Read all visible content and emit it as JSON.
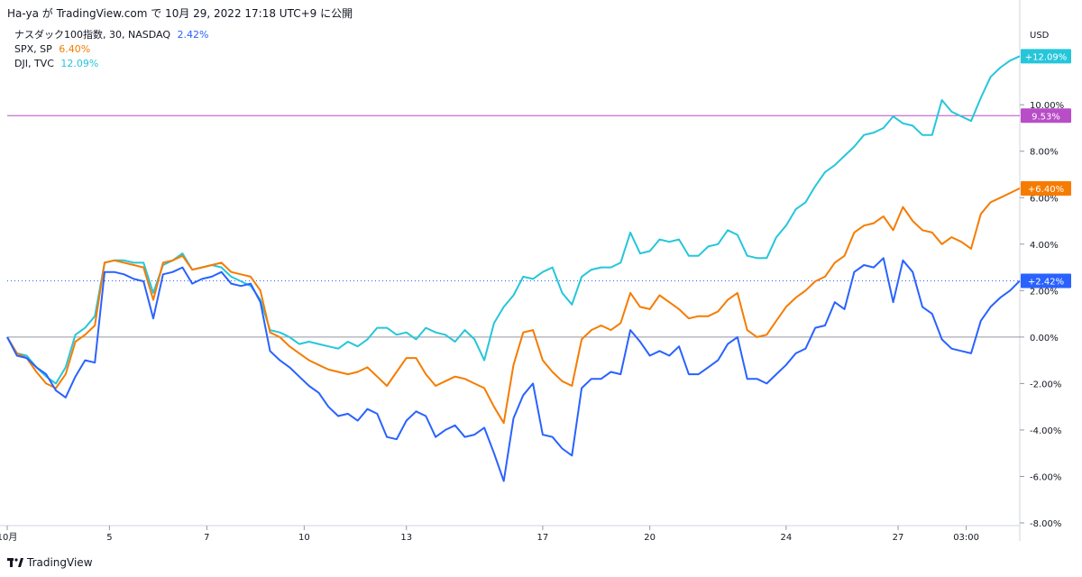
{
  "header": {
    "text": "Ha-ya が TradingView.com で 10月 29, 2022 17:18 UTC+9 に公開"
  },
  "legend": [
    {
      "name": "ナスダック100指数, 30, NASDAQ",
      "value": "2.42%",
      "color": "#2962ff"
    },
    {
      "name": "SPX, SP",
      "value": "6.40%",
      "color": "#f57c00"
    },
    {
      "name": "DJI, TVC",
      "value": "12.09%",
      "color": "#26c6da"
    }
  ],
  "footer": {
    "brand": "TradingView"
  },
  "colors": {
    "ref_line": "#b84dc7",
    "zero_line": "#9598a1",
    "blue_dotted": "#2962ff"
  },
  "chart_data": {
    "type": "line",
    "y_unit": "USD",
    "ylim": [
      -8,
      13.5
    ],
    "y_ticks": [
      {
        "value": 10,
        "label": "10.00%"
      },
      {
        "value": 8,
        "label": "8.00%"
      },
      {
        "value": 6,
        "label": "6.00%"
      },
      {
        "value": 4,
        "label": "4.00%"
      },
      {
        "value": 2,
        "label": "2.00%"
      },
      {
        "value": 0,
        "label": "0.00%"
      },
      {
        "value": -2,
        "label": "-2.00%"
      },
      {
        "value": -4,
        "label": "-4.00%"
      },
      {
        "value": -6,
        "label": "-6.00%"
      },
      {
        "value": -8,
        "label": "-8.00%"
      }
    ],
    "x_ticks": [
      {
        "label": "10月",
        "index": 0
      },
      {
        "label": "5",
        "index": 10.5
      },
      {
        "label": "7",
        "index": 20.5
      },
      {
        "label": "10",
        "index": 30.5
      },
      {
        "label": "13",
        "index": 41
      },
      {
        "label": "17",
        "index": 55
      },
      {
        "label": "20",
        "index": 66
      },
      {
        "label": "24",
        "index": 80
      },
      {
        "label": "27",
        "index": 91.5
      },
      {
        "label": "03:00",
        "index": 98.5
      }
    ],
    "reference_line": {
      "value": 9.53,
      "label": "9.53%"
    },
    "series": [
      {
        "name": "ナスダック100指数",
        "color": "#2962ff",
        "last_label": "+2.42%",
        "values": [
          0,
          -0.8,
          -0.9,
          -1.3,
          -1.6,
          -2.3,
          -2.6,
          -1.7,
          -1.0,
          -1.1,
          2.8,
          2.8,
          2.7,
          2.5,
          2.4,
          0.8,
          2.7,
          2.8,
          3.0,
          2.3,
          2.5,
          2.6,
          2.8,
          2.3,
          2.2,
          2.3,
          1.5,
          -0.6,
          -1.0,
          -1.3,
          -1.7,
          -2.1,
          -2.4,
          -3.0,
          -3.4,
          -3.3,
          -3.6,
          -3.1,
          -3.3,
          -4.3,
          -4.4,
          -3.6,
          -3.2,
          -3.4,
          -4.3,
          -4.0,
          -3.8,
          -4.3,
          -4.2,
          -3.9,
          -5.0,
          -6.2,
          -3.5,
          -2.5,
          -2.0,
          -4.2,
          -4.3,
          -4.8,
          -5.1,
          -2.2,
          -1.8,
          -1.8,
          -1.5,
          -1.6,
          0.3,
          -0.2,
          -0.8,
          -0.6,
          -0.8,
          -0.4,
          -1.6,
          -1.6,
          -1.3,
          -1.0,
          -0.3,
          0.0,
          -1.8,
          -1.8,
          -2.0,
          -1.6,
          -1.2,
          -0.7,
          -0.5,
          0.4,
          0.5,
          1.5,
          1.2,
          2.8,
          3.1,
          3.0,
          3.4,
          1.5,
          3.3,
          2.8,
          1.3,
          1.0,
          -0.1,
          -0.5,
          -0.6,
          -0.7,
          0.7,
          1.3,
          1.7,
          2.0,
          2.42
        ]
      },
      {
        "name": "SPX",
        "color": "#f57c00",
        "last_label": "+6.40%",
        "values": [
          0,
          -0.7,
          -0.9,
          -1.5,
          -2.0,
          -2.2,
          -1.6,
          -0.2,
          0.1,
          0.5,
          3.2,
          3.3,
          3.2,
          3.1,
          3.0,
          1.6,
          3.2,
          3.3,
          3.5,
          2.9,
          3.0,
          3.1,
          3.2,
          2.8,
          2.7,
          2.6,
          2.0,
          0.2,
          0.0,
          -0.4,
          -0.7,
          -1.0,
          -1.2,
          -1.4,
          -1.5,
          -1.6,
          -1.5,
          -1.3,
          -1.7,
          -2.1,
          -1.5,
          -0.9,
          -0.9,
          -1.6,
          -2.1,
          -1.9,
          -1.7,
          -1.8,
          -2.0,
          -2.2,
          -3.0,
          -3.7,
          -1.2,
          0.2,
          0.3,
          -1.0,
          -1.5,
          -1.9,
          -2.1,
          -0.1,
          0.3,
          0.5,
          0.3,
          0.6,
          1.9,
          1.3,
          1.2,
          1.8,
          1.5,
          1.2,
          0.8,
          0.9,
          0.9,
          1.1,
          1.6,
          1.9,
          0.3,
          0.0,
          0.1,
          0.7,
          1.3,
          1.7,
          2.0,
          2.4,
          2.6,
          3.2,
          3.5,
          4.5,
          4.8,
          4.9,
          5.2,
          4.6,
          5.6,
          5.0,
          4.6,
          4.5,
          4.0,
          4.3,
          4.1,
          3.8,
          5.3,
          5.8,
          6.0,
          6.2,
          6.4
        ]
      },
      {
        "name": "DJI",
        "color": "#26c6da",
        "last_label": "+12.09%",
        "values": [
          0,
          -0.7,
          -0.8,
          -1.3,
          -1.7,
          -2.0,
          -1.3,
          0.1,
          0.4,
          0.9,
          3.2,
          3.3,
          3.3,
          3.2,
          3.2,
          1.9,
          3.1,
          3.3,
          3.6,
          2.9,
          3.0,
          3.1,
          3.0,
          2.6,
          2.4,
          2.2,
          1.6,
          0.3,
          0.2,
          0.0,
          -0.3,
          -0.2,
          -0.3,
          -0.4,
          -0.5,
          -0.2,
          -0.4,
          -0.1,
          0.4,
          0.4,
          0.1,
          0.2,
          -0.1,
          0.4,
          0.2,
          0.1,
          -0.2,
          0.3,
          -0.1,
          -1.0,
          0.6,
          1.3,
          1.8,
          2.6,
          2.5,
          2.8,
          3.0,
          1.9,
          1.4,
          2.6,
          2.9,
          3.0,
          3.0,
          3.2,
          4.5,
          3.6,
          3.7,
          4.2,
          4.1,
          4.2,
          3.5,
          3.5,
          3.9,
          4.0,
          4.6,
          4.4,
          3.5,
          3.4,
          3.4,
          4.3,
          4.8,
          5.5,
          5.8,
          6.5,
          7.1,
          7.4,
          7.8,
          8.2,
          8.7,
          8.8,
          9.0,
          9.5,
          9.2,
          9.1,
          8.7,
          8.7,
          10.2,
          9.7,
          9.5,
          9.3,
          10.3,
          11.2,
          11.6,
          11.9,
          12.09
        ]
      }
    ]
  }
}
